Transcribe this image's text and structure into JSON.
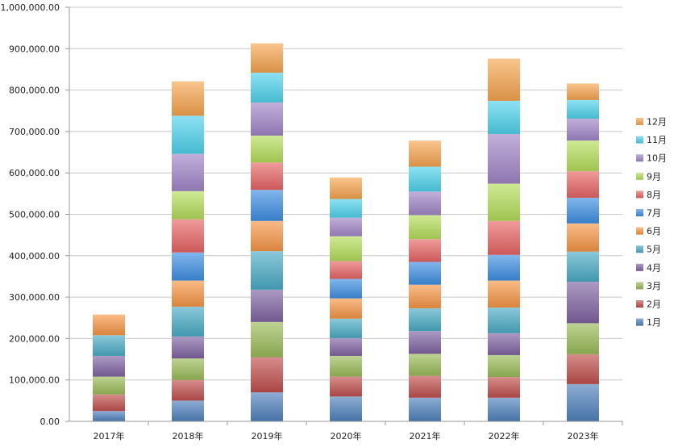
{
  "chart_data": {
    "type": "bar",
    "stacked": true,
    "categories": [
      "2017年",
      "2018年",
      "2019年",
      "2020年",
      "2021年",
      "2022年",
      "2023年"
    ],
    "ylim": [
      0,
      1000000
    ],
    "yticks": [
      0,
      100000,
      200000,
      300000,
      400000,
      500000,
      600000,
      700000,
      800000,
      900000,
      1000000
    ],
    "ytick_labels": [
      "0.00",
      "100,000.00",
      "200,000.00",
      "300,000.00",
      "400,000.00",
      "500,000.00",
      "600,000.00",
      "700,000.00",
      "800,000.00",
      "900,000.00",
      "1,000,000.00"
    ],
    "grid": "horizontal",
    "legend_position": "right",
    "legend_order": "reversed",
    "series": [
      {
        "name": "1月",
        "color": "#4f81bd",
        "values": [
          25000,
          50000,
          70000,
          60000,
          57000,
          57000,
          90000
        ]
      },
      {
        "name": "2月",
        "color": "#c0504d",
        "values": [
          40000,
          50000,
          85000,
          48000,
          53000,
          50000,
          72000
        ]
      },
      {
        "name": "3月",
        "color": "#9bbb59",
        "values": [
          43000,
          52000,
          85000,
          50000,
          53000,
          53000,
          75000
        ]
      },
      {
        "name": "4月",
        "color": "#8064a2",
        "values": [
          50000,
          53000,
          78000,
          43000,
          55000,
          53000,
          100000
        ]
      },
      {
        "name": "5月",
        "color": "#4bacc6",
        "values": [
          50000,
          72000,
          93000,
          47000,
          55000,
          62000,
          73000
        ]
      },
      {
        "name": "6月",
        "color": "#f79646",
        "values": [
          50000,
          63000,
          73000,
          49000,
          57000,
          65000,
          68000
        ]
      },
      {
        "name": "7月",
        "color": "#3f8fe3",
        "values": [
          0,
          68000,
          75000,
          47000,
          55000,
          62000,
          62000
        ]
      },
      {
        "name": "8月",
        "color": "#e86565",
        "values": [
          0,
          80000,
          66000,
          43000,
          55000,
          82000,
          64000
        ]
      },
      {
        "name": "9月",
        "color": "#b5de5b",
        "values": [
          0,
          68000,
          65000,
          60000,
          58000,
          90000,
          74000
        ]
      },
      {
        "name": "10月",
        "color": "#a186c8",
        "values": [
          0,
          90000,
          80000,
          45000,
          57000,
          120000,
          53000
        ]
      },
      {
        "name": "11月",
        "color": "#4fd3ec",
        "values": [
          0,
          92000,
          72000,
          45000,
          60000,
          80000,
          45000
        ]
      },
      {
        "name": "12月",
        "color": "#f7a550",
        "values": [
          0,
          83000,
          71000,
          52000,
          63000,
          102000,
          40000
        ]
      }
    ]
  }
}
